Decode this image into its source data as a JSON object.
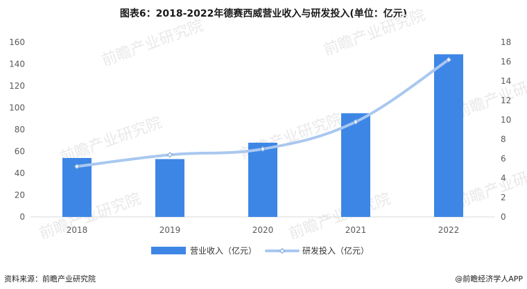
{
  "title": "图表6：2018-2022年德赛西威营业收入与研发投入(单位：亿元)",
  "source": "资料来源：前瞻产业研究院",
  "credit": "@前瞻经济学人APP",
  "watermark": "前瞻产业研究院",
  "colors": {
    "bar": "#3d86e6",
    "line": "#a9c8f0",
    "marker": "#a9c8f0",
    "axis": "#d9d9d9",
    "text": "#595959",
    "watermark": "#e9e9e9"
  },
  "chart_data": {
    "type": "bar",
    "categories": [
      "2018",
      "2019",
      "2020",
      "2021",
      "2022"
    ],
    "series": [
      {
        "name": "营业收入（亿元）",
        "type": "bar",
        "axis": "left",
        "values": [
          54,
          53,
          68,
          95,
          149
        ]
      },
      {
        "name": "研发投入（亿元）",
        "type": "line",
        "axis": "right",
        "values": [
          5.2,
          6.4,
          7.0,
          9.8,
          16.2
        ]
      }
    ],
    "y_left": {
      "ylim": [
        0,
        160
      ],
      "ticks": [
        "0",
        "20",
        "40",
        "60",
        "80",
        "100",
        "120",
        "140",
        "160"
      ]
    },
    "y_right": {
      "ylim": [
        0,
        18
      ],
      "ticks": [
        "0",
        "2",
        "4",
        "6",
        "8",
        "10",
        "12",
        "14",
        "16",
        "18"
      ]
    },
    "legend": "bottom",
    "grid": false
  }
}
